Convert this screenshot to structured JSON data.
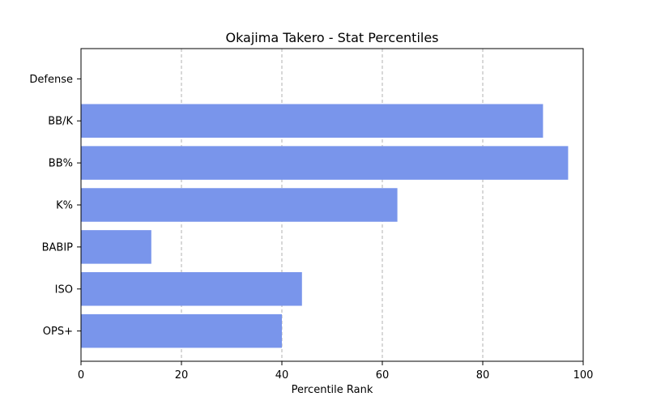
{
  "chart_data": {
    "type": "bar",
    "orientation": "horizontal",
    "title": "Okajima Takero - Stat Percentiles",
    "xlabel": "Percentile Rank",
    "ylabel": "",
    "xlim": [
      0,
      100
    ],
    "xticks": [
      0,
      20,
      40,
      60,
      80,
      100
    ],
    "grid": "x-dashed",
    "categories": [
      "OPS+",
      "ISO",
      "BABIP",
      "K%",
      "BB%",
      "BB/K",
      "Defense"
    ],
    "values": [
      40,
      44,
      14,
      63,
      97,
      92,
      0
    ],
    "bar_color": "#7995eb"
  }
}
